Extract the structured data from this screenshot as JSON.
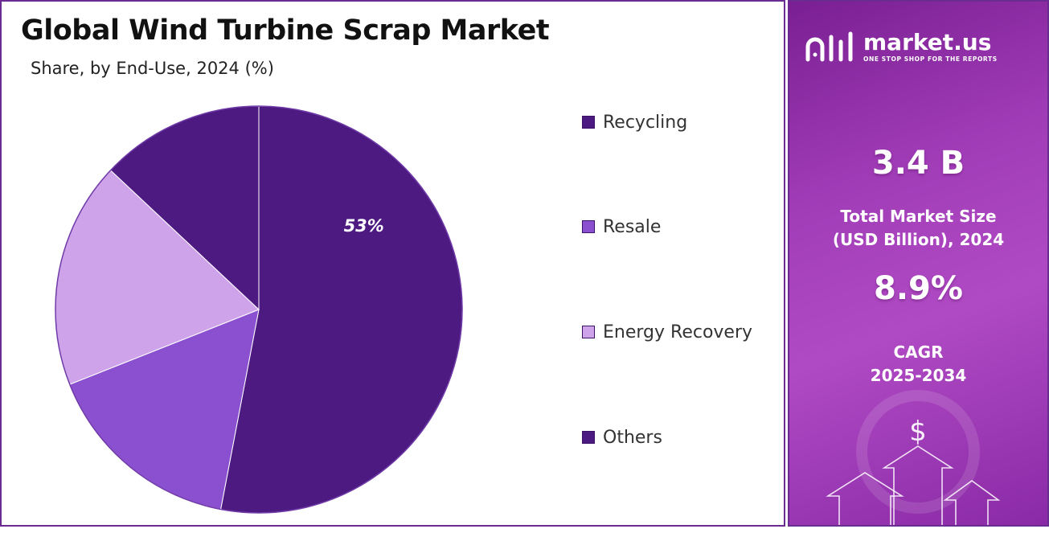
{
  "title": "Global Wind Turbine Scrap Market",
  "subtitle": "Share, by End-Use, 2024 (%)",
  "chart_data": {
    "type": "pie",
    "categories": [
      "Recycling",
      "Resale",
      "Energy Recovery",
      "Others"
    ],
    "values": [
      53,
      16,
      18,
      13
    ],
    "data_labels": [
      "53%",
      "",
      "",
      ""
    ],
    "colors": [
      "#4d1a82",
      "#8a50cf",
      "#cfa3ea",
      "#4d1a82"
    ],
    "legend_position": "right",
    "title": "Global Wind Turbine Scrap Market",
    "subtitle": "Share, by End-Use, 2024 (%)"
  },
  "sidebar": {
    "brand": {
      "name": "market.us",
      "tagline": "ONE STOP SHOP FOR THE REPORTS"
    },
    "market_size_value": "3.4 B",
    "market_size_label_line1": "Total Market Size",
    "market_size_label_line2": "(USD Billion), 2024",
    "cagr_value": "8.9%",
    "cagr_label_line1": "CAGR",
    "cagr_label_line2": "2025-2034",
    "colors": {
      "accent": "#a23db8",
      "border": "#6a2c91"
    }
  }
}
